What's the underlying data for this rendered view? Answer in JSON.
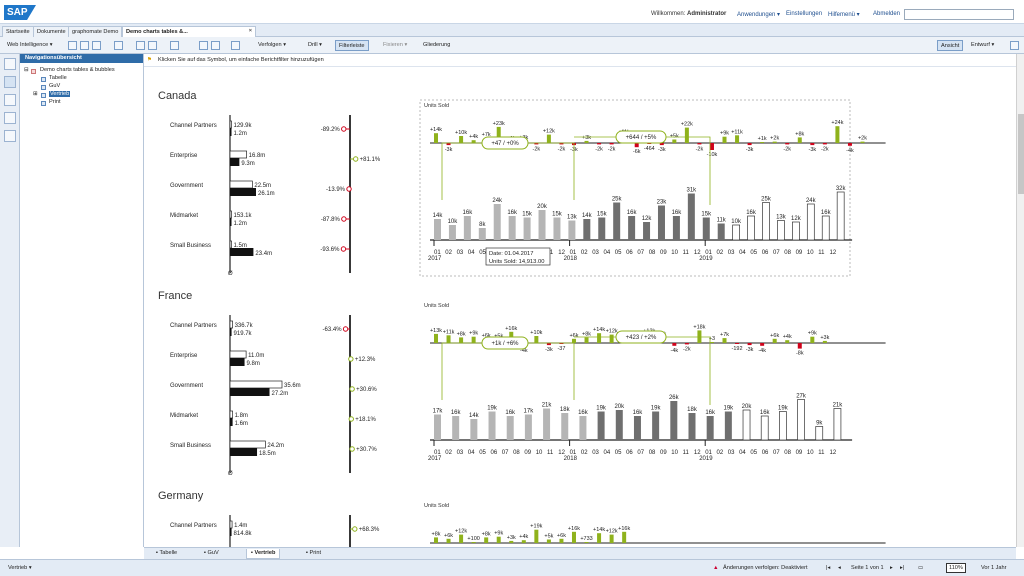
{
  "header": {
    "logo": "SAP",
    "welcome_prefix": "Willkommen:",
    "user": "Administrator",
    "links": [
      "Anwendungen ▾",
      "Einstellungen",
      "Hilfemenü ▾",
      "Abmelden"
    ]
  },
  "tabs": [
    "Startseite",
    "Dokumente",
    "graphomate Demo",
    "Demo charts tables &..."
  ],
  "toolbar": {
    "mode": "Web Intelligence ▾",
    "verfolgen": "Verfolgen ▾",
    "drill": "Drill ▾",
    "filterleiste": "Filterleiste",
    "fixieren": "Fixieren ▾",
    "gliederung": "Gliederung",
    "ansicht": "Ansicht",
    "entwurf": "Entwurf ▾"
  },
  "nav": {
    "title": "Navigationsübersicht",
    "items": [
      "Demo charts tables & bubbles",
      "Tabelle",
      "GuV",
      "Vertrieb",
      "Print"
    ]
  },
  "infobar": "Klicken Sie auf das Symbol, um einfache Berichtfilter hinzuzufügen",
  "report": {
    "units_label": "Units Sold",
    "zero_label": "Ø",
    "countries": [
      {
        "name": "Canada",
        "rows": [
          {
            "label": "Channel Partners",
            "v1": "129.9k",
            "v2": "1.2m",
            "pct": "-89.2%",
            "pctv": -89.2,
            "b1": 0.02,
            "b2": 0.02
          },
          {
            "label": "Enterprise",
            "v1": "16.8m",
            "v2": "9.3m",
            "pct": "+81.1%",
            "pctv": 81.1,
            "b1": 0.32,
            "b2": 0.18
          },
          {
            "label": "Government",
            "v1": "22.5m",
            "v2": "26.1m",
            "pct": "-13.9%",
            "pctv": -13.9,
            "b1": 0.43,
            "b2": 0.5
          },
          {
            "label": "Midmarket",
            "v1": "153.1k",
            "v2": "1.2m",
            "pct": "-87.8%",
            "pctv": -87.8,
            "b1": 0.02,
            "b2": 0.02
          },
          {
            "label": "Small Business",
            "v1": "1.5m",
            "v2": "23.4m",
            "pct": "-93.6%",
            "pctv": -93.6,
            "b1": 0.03,
            "b2": 0.45
          }
        ],
        "deltas": [
          "+14k",
          "-3k",
          "+10k",
          "+4k",
          "+7k",
          "+23k",
          "+1k",
          "+3k",
          "-2k",
          "+12k",
          "-2k",
          "-3k",
          "+3k",
          "-2k",
          "-2k",
          "+11k",
          "-6k",
          "-464",
          "-3k",
          "+5k",
          "+22k",
          "-2k",
          "-10k",
          "+9k",
          "+11k",
          "-3k",
          "+1k",
          "+2k",
          "-2k",
          "+8k",
          "-3k",
          "-2k",
          "+24k",
          "-4k",
          "+2k"
        ],
        "bars": [
          "14k",
          "10k",
          "16k",
          "8k",
          "24k",
          "16k",
          "15k",
          "20k",
          "15k",
          "13k",
          "14k",
          "15k",
          "25k",
          "16k",
          "12k",
          "23k",
          "16k",
          "31k",
          "15k",
          "11k",
          "10k",
          "16k",
          "25k",
          "13k",
          "12k",
          "24k",
          "16k",
          "32k"
        ],
        "annot1": "+47 / +0%",
        "annot2": "+644 / +5%",
        "tooltip_date": "Date: 01.04.2017",
        "tooltip_units": "Units Sold: 14,913.00"
      },
      {
        "name": "France",
        "rows": [
          {
            "label": "Channel Partners",
            "v1": "336.7k",
            "v2": "919.7k",
            "pct": "-63.4%",
            "pctv": -63.4,
            "b1": 0.05,
            "b2": 0.03
          },
          {
            "label": "Enterprise",
            "v1": "11.0m",
            "v2": "9.8m",
            "pct": "+12.3%",
            "pctv": 12.3,
            "b1": 0.31,
            "b2": 0.28
          },
          {
            "label": "Government",
            "v1": "35.6m",
            "v2": "27.2m",
            "pct": "+30.6%",
            "pctv": 30.6,
            "b1": 1.0,
            "b2": 0.76
          },
          {
            "label": "Midmarket",
            "v1": "1.8m",
            "v2": "1.6m",
            "pct": "+18.1%",
            "pctv": 18.1,
            "b1": 0.05,
            "b2": 0.05
          },
          {
            "label": "Small Business",
            "v1": "24.2m",
            "v2": "18.5m",
            "pct": "+30.7%",
            "pctv": 30.7,
            "b1": 0.68,
            "b2": 0.52
          }
        ],
        "deltas": [
          "+13k",
          "+11k",
          "+8k",
          "+9k",
          "+6k",
          "+5k",
          "+16k",
          "-4k",
          "+10k",
          "-3k",
          "-37",
          "+6k",
          "+8k",
          "+14k",
          "+12k",
          "+8k",
          "+1k",
          "+12k",
          "+8k",
          "-4k",
          "-2k",
          "+18k",
          "+3",
          "+7k",
          "-192",
          "-3k",
          "-4k",
          "+6k",
          "+4k",
          "-8k",
          "+9k",
          "+3k"
        ],
        "bars": [
          "17k",
          "16k",
          "14k",
          "19k",
          "16k",
          "17k",
          "21k",
          "18k",
          "16k",
          "19k",
          "20k",
          "16k",
          "19k",
          "26k",
          "18k",
          "16k",
          "19k",
          "20k",
          "16k",
          "19k",
          "27k",
          "9k",
          "21k"
        ],
        "annot1": "+1k / +6%",
        "annot2": "+423 / +2%"
      },
      {
        "name": "Germany",
        "rows": [
          {
            "label": "Channel Partners",
            "v1": "1.4m",
            "v2": "814.8k",
            "pct": "+68.3%",
            "pctv": 68.3,
            "b1": 0.04,
            "b2": 0.03
          }
        ],
        "deltas": [
          "+8k",
          "+6k",
          "+12k",
          "+100",
          "+8k",
          "+9k",
          "+3k",
          "+4k",
          "+19k",
          "+5k",
          "+6k",
          "+16k",
          "+733",
          "+14k",
          "+12k",
          "+16k"
        ],
        "bars": []
      }
    ],
    "x_months": [
      "01",
      "02",
      "03",
      "04",
      "05",
      "06",
      "07",
      "08",
      "09",
      "10",
      "11",
      "12",
      "01",
      "02",
      "03",
      "04",
      "05",
      "06",
      "07",
      "08",
      "09",
      "10",
      "11",
      "12",
      "01",
      "02",
      "03",
      "04",
      "05",
      "06",
      "07",
      "08",
      "09",
      "10",
      "11",
      "12"
    ],
    "years": [
      "2017",
      "2018",
      "2019"
    ]
  },
  "bottom_tabs": [
    "Tabelle",
    "GuV",
    "Vertrieb",
    "Print"
  ],
  "status": {
    "left": "Vertrieb ▾",
    "tracking": "Änderungen verfolgen: Deaktiviert",
    "page": "Seite 1 von 1",
    "zoom": "110%",
    "refresh": "Vor 1 Jahr"
  }
}
